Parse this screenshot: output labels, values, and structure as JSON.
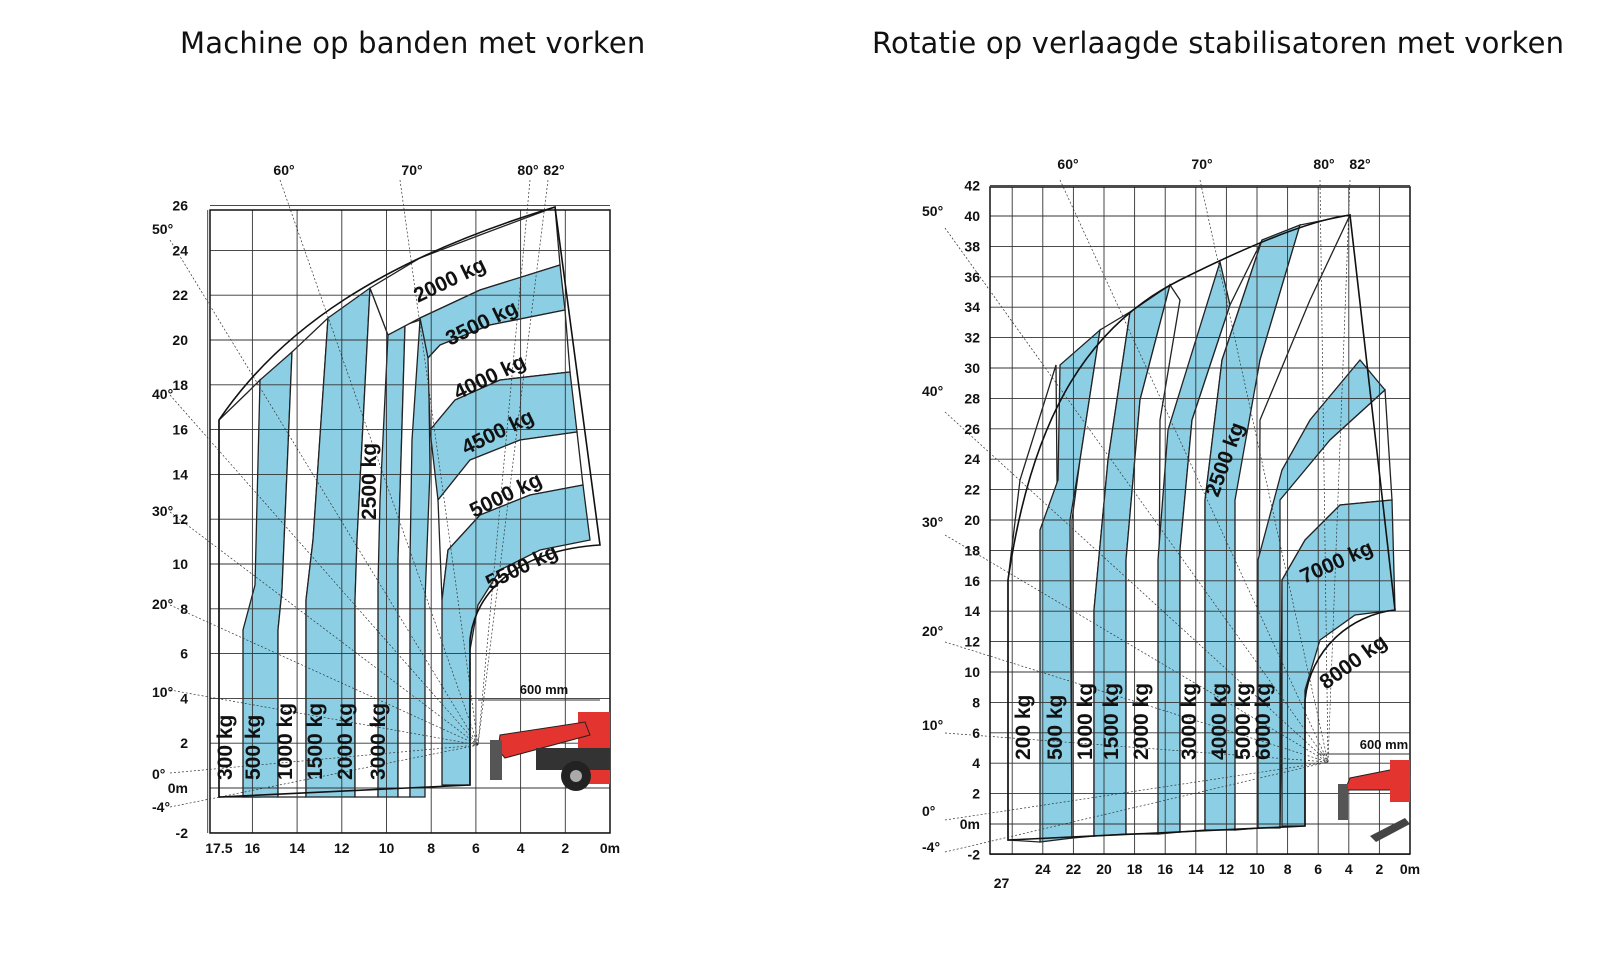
{
  "charts": [
    {
      "title": "Machine op banden met vorken",
      "y_ticks": [
        "26",
        "24",
        "22",
        "20",
        "18",
        "16",
        "14",
        "12",
        "10",
        "8",
        "6",
        "4",
        "2",
        "0m",
        "-2"
      ],
      "x_ticks": [
        "17.5",
        "16",
        "14",
        "12",
        "10",
        "8",
        "6",
        "4",
        "2",
        "0m"
      ],
      "angles": [
        "50°",
        "40°",
        "30°",
        "20°",
        "10°",
        "0°",
        "-4°"
      ],
      "top_angles": [
        "60°",
        "70°",
        "80°",
        "82°"
      ],
      "dimension": "600 mm",
      "load_labels": [
        "300 kg",
        "500 kg",
        "1000 kg",
        "1500 kg",
        "2000 kg",
        "3000 kg",
        "2500 kg",
        "2000 kg",
        "3500 kg",
        "4000 kg",
        "4500 kg",
        "5000 kg",
        "5500 kg"
      ]
    },
    {
      "title": "Rotatie op verlaagde stabilisatoren met vorken",
      "y_ticks": [
        "42",
        "40",
        "38",
        "36",
        "34",
        "32",
        "30",
        "28",
        "26",
        "24",
        "22",
        "20",
        "18",
        "16",
        "14",
        "12",
        "10",
        "8",
        "6",
        "4",
        "2",
        "0m",
        "-2"
      ],
      "x_ticks": [
        "27",
        "24",
        "22",
        "20",
        "18",
        "16",
        "14",
        "12",
        "10",
        "8",
        "6",
        "4",
        "2",
        "0m"
      ],
      "angles": [
        "50°",
        "40°",
        "30°",
        "20°",
        "10°",
        "0°",
        "-4°"
      ],
      "top_angles": [
        "60°",
        "70°",
        "80°",
        "82°"
      ],
      "dimension": "600 mm",
      "load_labels": [
        "200 kg",
        "500 kg",
        "1000 kg",
        "1500 kg",
        "2000 kg",
        "3000 kg",
        "4000 kg",
        "5000 kg",
        "6000 kg",
        "2500 kg",
        "7000 kg",
        "8000 kg"
      ]
    }
  ],
  "colors": {
    "blue": "#8ccfe4",
    "grid": "#333333",
    "machine_red": "#e3342f"
  }
}
